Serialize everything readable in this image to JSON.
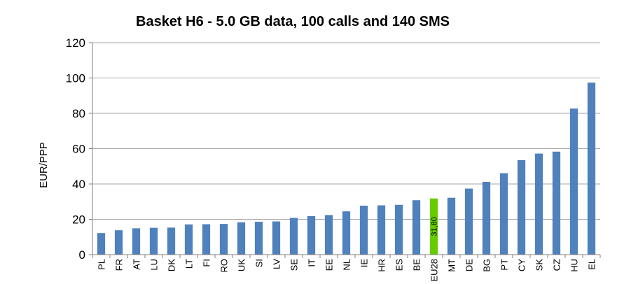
{
  "chart_data": {
    "type": "bar",
    "title": "Basket H6 - 5.0 GB data, 100 calls and 140 SMS",
    "xlabel": "",
    "ylabel": "EUR/PPP",
    "ylim": [
      0,
      120
    ],
    "yticks": [
      0,
      20,
      40,
      60,
      80,
      100,
      120
    ],
    "grid": true,
    "legend": "none",
    "categories": [
      "PL",
      "FR",
      "AT",
      "LU",
      "DK",
      "LT",
      "FI",
      "RO",
      "UK",
      "SI",
      "LV",
      "SE",
      "IT",
      "EE",
      "NL",
      "IE",
      "HR",
      "ES",
      "BE",
      "EU28",
      "MT",
      "DE",
      "BG",
      "PT",
      "CY",
      "SK",
      "CZ",
      "HU",
      "EL"
    ],
    "values": [
      12.2,
      13.8,
      14.9,
      15.2,
      15.3,
      17.1,
      17.2,
      17.4,
      18.3,
      18.6,
      18.8,
      20.8,
      21.8,
      22.4,
      24.5,
      27.7,
      27.9,
      28.2,
      30.8,
      31.8,
      32.2,
      37.4,
      41.2,
      46.1,
      53.5,
      57.2,
      58.3,
      82.7,
      97.4
    ],
    "highlight_index": 19,
    "data_labels": {
      "EU28": "31,80"
    },
    "colors": {
      "bar": "#4f81bd",
      "highlight": "#66cc00",
      "grid": "#a6a6a6",
      "axis": "#808080"
    }
  }
}
